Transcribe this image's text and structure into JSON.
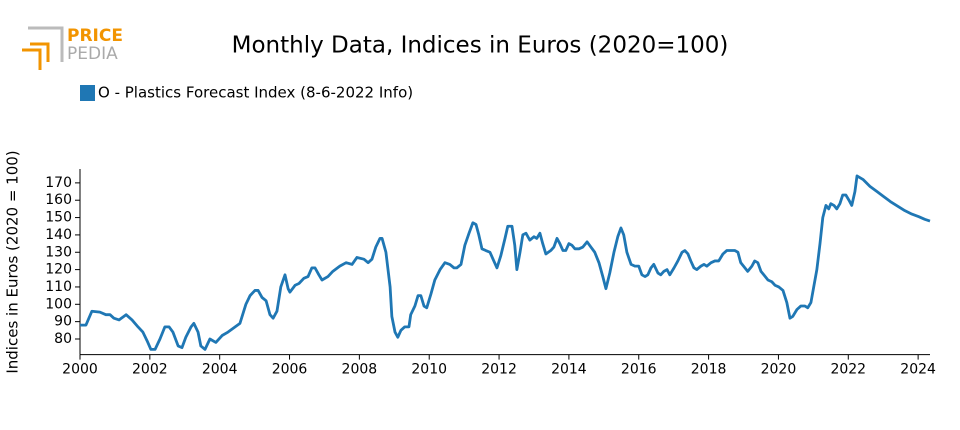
{
  "logo": {
    "line1": "PRICE",
    "line2": "PEDIA"
  },
  "chart_data": {
    "type": "line",
    "title": "Monthly Data, Indices in Euros (2020=100)",
    "y_label": "Indices in Euros (2020 = 100)",
    "legend": "top-left",
    "xlim": [
      2000,
      2024.34
    ],
    "ylim": [
      71,
      178
    ],
    "xticks": [
      2000,
      2002,
      2004,
      2006,
      2008,
      2010,
      2012,
      2014,
      2016,
      2018,
      2020,
      2022,
      2024
    ],
    "yticks": [
      80,
      90,
      100,
      110,
      120,
      130,
      140,
      150,
      160,
      170
    ],
    "series": [
      {
        "name": "O - Plastics Forecast Index (8-6-2022 Info)",
        "color": "#1f77b4",
        "x": [
          2000.0,
          2000.17,
          2000.34,
          2000.57,
          2000.74,
          2000.86,
          2000.97,
          2001.12,
          2001.32,
          2001.49,
          2001.66,
          2001.8,
          2001.92,
          2002.03,
          2002.15,
          2002.29,
          2002.43,
          2002.55,
          2002.66,
          2002.81,
          2002.92,
          2003.03,
          2003.18,
          2003.26,
          2003.38,
          2003.46,
          2003.58,
          2003.72,
          2003.89,
          2004.07,
          2004.24,
          2004.58,
          2004.75,
          2004.87,
          2005.01,
          2005.1,
          2005.21,
          2005.33,
          2005.44,
          2005.53,
          2005.64,
          2005.75,
          2005.87,
          2005.96,
          2006.01,
          2006.16,
          2006.27,
          2006.41,
          2006.53,
          2006.64,
          2006.73,
          2006.84,
          2006.93,
          2007.1,
          2007.24,
          2007.44,
          2007.62,
          2007.79,
          2007.93,
          2008.13,
          2008.25,
          2008.36,
          2008.47,
          2008.59,
          2008.65,
          2008.76,
          2008.88,
          2008.93,
          2009.02,
          2009.1,
          2009.19,
          2009.3,
          2009.42,
          2009.47,
          2009.59,
          2009.68,
          2009.76,
          2009.85,
          2009.93,
          2010.05,
          2010.16,
          2010.31,
          2010.45,
          2010.59,
          2010.71,
          2010.79,
          2010.91,
          2011.02,
          2011.14,
          2011.25,
          2011.34,
          2011.42,
          2011.51,
          2011.62,
          2011.74,
          2011.85,
          2011.94,
          2012.05,
          2012.17,
          2012.25,
          2012.37,
          2012.45,
          2012.51,
          2012.6,
          2012.68,
          2012.77,
          2012.88,
          2013.0,
          2013.08,
          2013.17,
          2013.25,
          2013.34,
          2013.48,
          2013.57,
          2013.66,
          2013.74,
          2013.83,
          2013.91,
          2014.0,
          2014.09,
          2014.17,
          2014.29,
          2014.4,
          2014.52,
          2014.63,
          2014.74,
          2014.86,
          2014.97,
          2015.06,
          2015.17,
          2015.29,
          2015.4,
          2015.49,
          2015.57,
          2015.66,
          2015.78,
          2015.89,
          2016.0,
          2016.09,
          2016.18,
          2016.26,
          2016.35,
          2016.43,
          2016.55,
          2016.63,
          2016.72,
          2016.81,
          2016.89,
          2017.01,
          2017.12,
          2017.24,
          2017.32,
          2017.41,
          2017.49,
          2017.58,
          2017.66,
          2017.78,
          2017.87,
          2017.95,
          2018.07,
          2018.18,
          2018.29,
          2018.41,
          2018.52,
          2018.64,
          2018.75,
          2018.84,
          2018.92,
          2019.04,
          2019.12,
          2019.24,
          2019.32,
          2019.41,
          2019.5,
          2019.58,
          2019.7,
          2019.81,
          2019.9,
          2020.01,
          2020.13,
          2020.24,
          2020.33,
          2020.41,
          2020.53,
          2020.64,
          2020.76,
          2020.84,
          2020.93,
          2021.01,
          2021.1,
          2021.19,
          2021.27,
          2021.36,
          2021.44,
          2021.5,
          2021.59,
          2021.67,
          2021.76,
          2021.84,
          2021.93,
          2022.02,
          2022.1,
          2022.19,
          2022.25,
          2022.42,
          2022.62,
          2022.82,
          2023.02,
          2023.22,
          2023.42,
          2023.62,
          2023.82,
          2024.02,
          2024.19,
          2024.34
        ],
        "values": [
          88,
          88,
          96,
          95.5,
          94,
          94,
          92,
          91,
          94,
          91,
          87,
          84,
          79,
          74,
          74,
          80,
          87,
          87,
          84,
          76,
          75,
          81,
          87,
          89,
          84,
          76,
          74,
          80,
          78,
          82,
          84,
          89,
          100,
          105,
          108,
          108,
          104,
          102,
          94,
          92,
          96,
          110,
          117,
          109,
          107,
          111,
          112,
          115,
          116,
          121,
          121,
          117,
          114,
          116,
          119,
          122,
          124,
          123,
          127,
          126,
          124,
          126,
          133,
          138,
          138,
          130,
          110,
          93,
          84,
          81,
          85,
          87,
          87,
          94,
          99,
          105,
          105,
          99,
          98,
          106,
          114,
          120,
          124,
          123,
          121,
          121,
          123,
          134,
          141,
          147,
          146,
          140,
          132,
          131,
          130,
          125,
          121,
          128,
          138,
          145,
          145,
          134,
          120,
          130,
          140,
          141,
          137,
          139,
          138,
          141,
          135,
          129,
          131,
          133,
          138,
          135,
          131,
          131,
          135,
          134,
          132,
          132,
          133,
          136,
          133,
          130,
          124,
          116,
          109,
          118,
          130,
          139,
          144,
          140,
          130,
          123,
          122,
          122,
          117,
          116,
          117,
          121,
          123,
          118,
          117,
          119,
          120,
          117,
          121,
          125,
          130,
          131,
          129,
          125,
          121,
          120,
          122,
          123,
          122,
          124,
          125,
          125,
          129,
          131,
          131,
          131,
          130,
          124,
          121,
          119,
          122,
          125,
          124,
          119,
          117,
          114,
          113,
          111,
          110,
          108,
          101,
          92,
          93,
          97,
          99,
          99,
          98,
          101,
          110,
          120,
          135,
          150,
          157,
          155,
          158,
          157,
          155,
          158,
          163,
          163,
          160,
          157,
          165,
          174,
          172,
          168,
          165,
          162,
          159,
          156.5,
          154,
          152,
          150.5,
          149,
          148
        ]
      }
    ]
  }
}
